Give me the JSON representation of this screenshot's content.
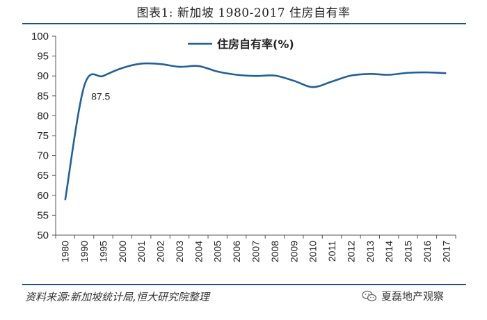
{
  "header": {
    "title": "图表1: 新加坡 1980-2017 住房自有率"
  },
  "footer": {
    "source": "资料来源:新加坡统计局,恒大研究院整理",
    "watermark": "夏磊地产观察",
    "watermark_icon": "wechat-icon"
  },
  "chart_data": {
    "type": "line",
    "title": "图表1: 新加坡 1980-2017 住房自有率",
    "xlabel": "",
    "ylabel": "",
    "ylim": [
      50,
      100
    ],
    "yticks": [
      50,
      55,
      60,
      65,
      70,
      75,
      80,
      85,
      90,
      95,
      100
    ],
    "grid": false,
    "legend": "top-center",
    "categories": [
      "1980",
      "1990",
      "1995",
      "2000",
      "2001",
      "2002",
      "2003",
      "2004",
      "2005",
      "2006",
      "2007",
      "2008",
      "2009",
      "2010",
      "2011",
      "2012",
      "2013",
      "2014",
      "2015",
      "2016",
      "2017"
    ],
    "series": [
      {
        "name": "住房自有率(%)",
        "color": "#1f5fa0",
        "values": [
          58.8,
          87.5,
          90.0,
          92.0,
          93.1,
          93.0,
          92.3,
          92.5,
          91.1,
          90.3,
          90.0,
          90.1,
          88.8,
          87.2,
          88.6,
          90.1,
          90.5,
          90.3,
          90.8,
          90.9,
          90.7
        ]
      }
    ],
    "annotations": [
      {
        "category": "1990",
        "value": 87.5,
        "label": "87.5"
      }
    ]
  }
}
